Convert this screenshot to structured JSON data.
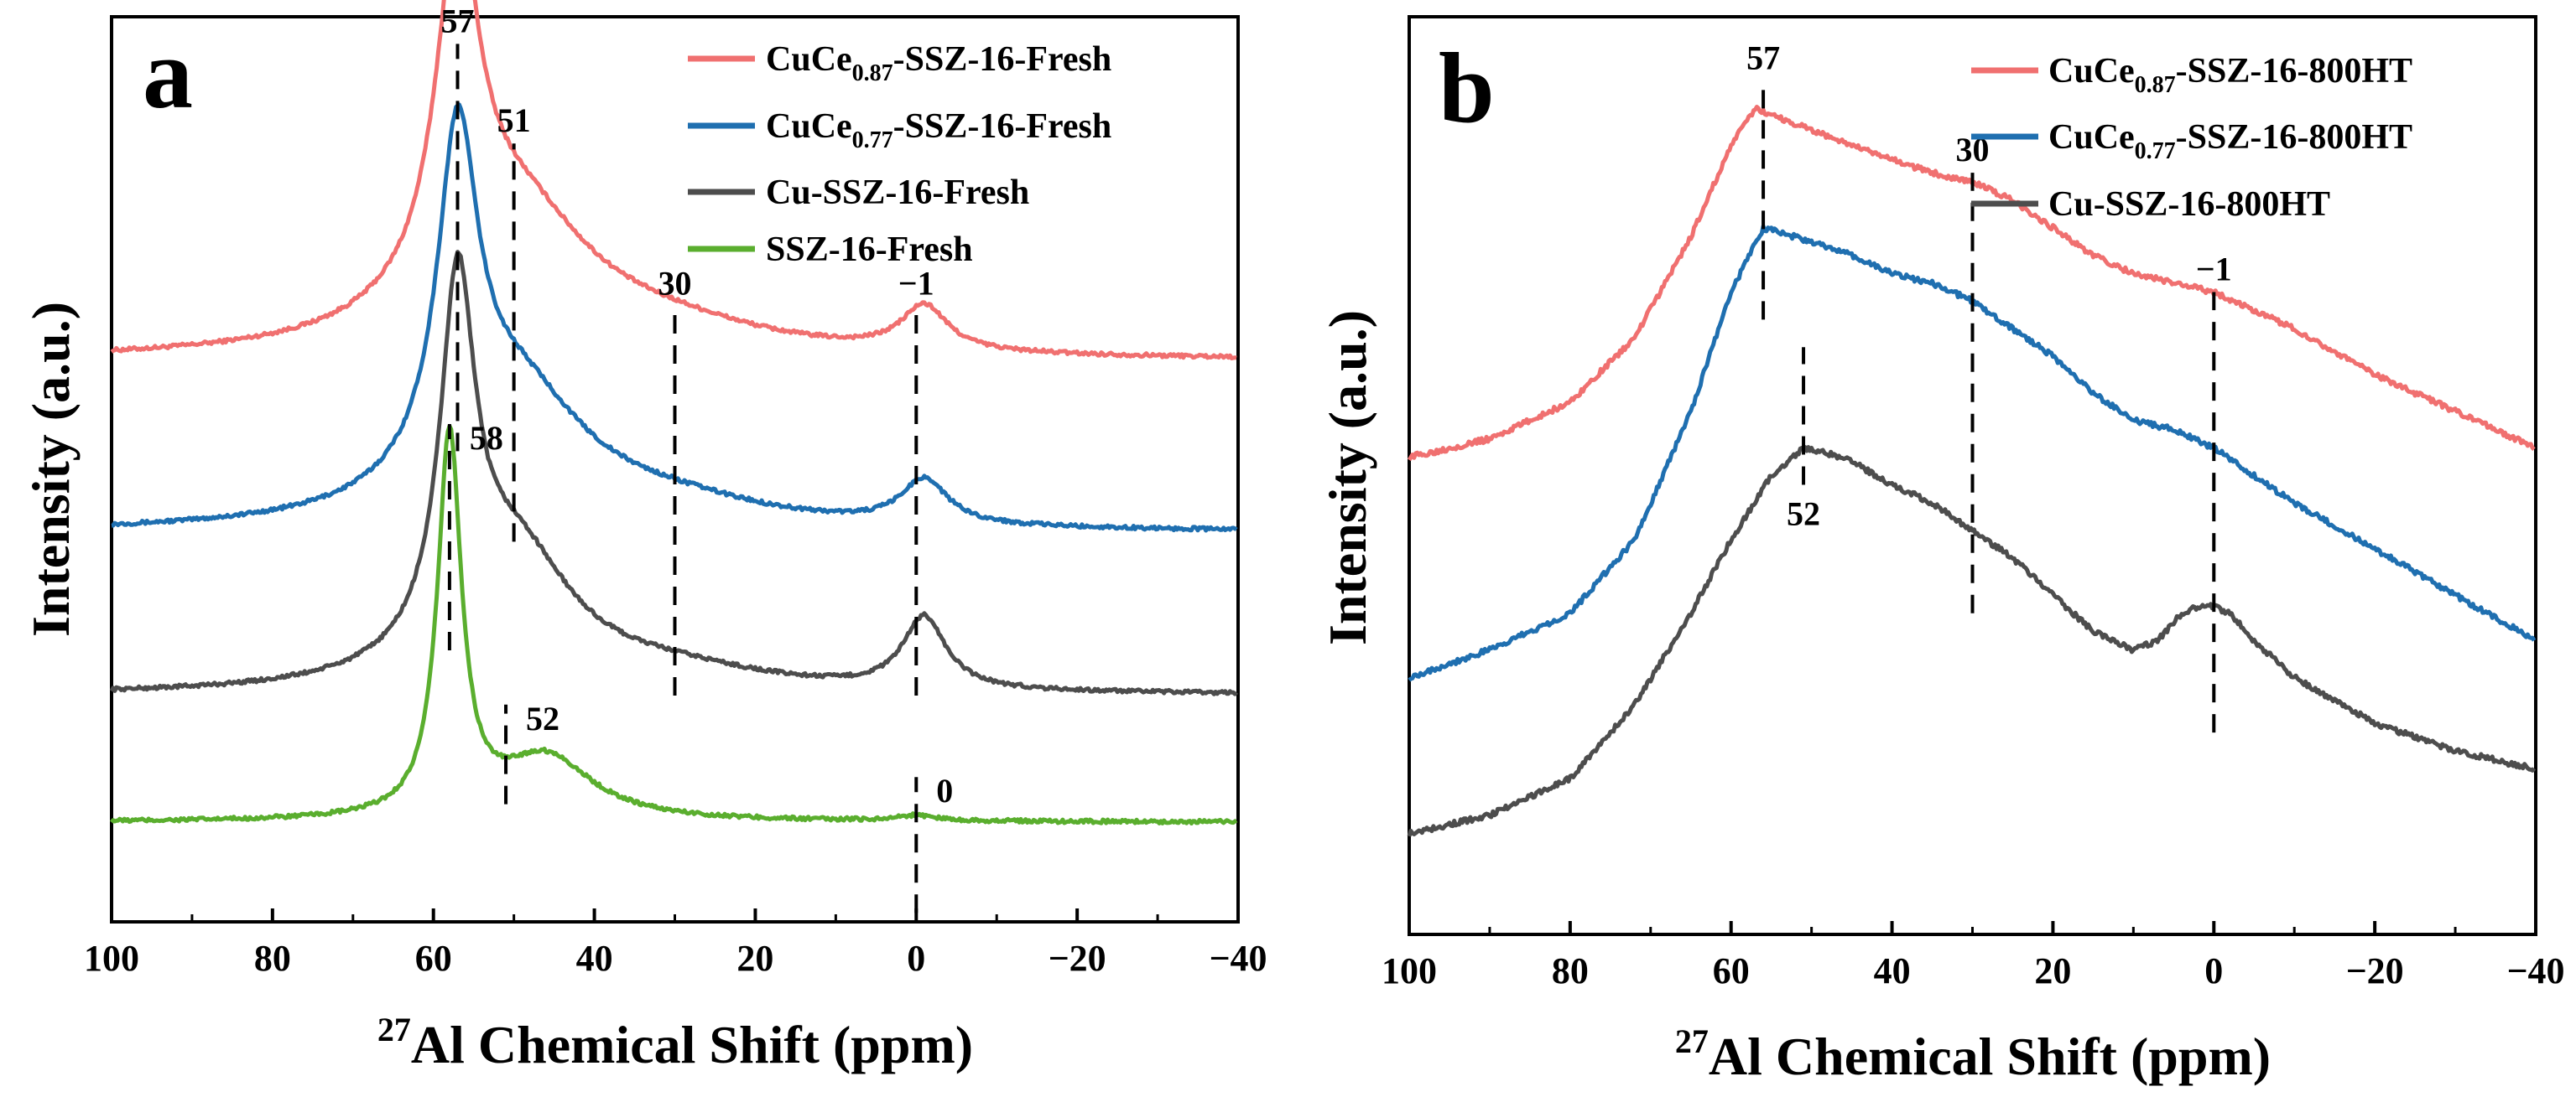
{
  "chart_data": [
    {
      "type": "line",
      "panel": "a",
      "xlabel_sup": "27",
      "xlabel": "Al Chemical Shift (ppm)",
      "ylabel": "Intensity (a.u.)",
      "xlim": [
        100,
        -40
      ],
      "x_ticks": [
        100,
        80,
        60,
        40,
        20,
        0,
        -20,
        -40
      ],
      "x_tick_labels": [
        "100",
        "80",
        "60",
        "40",
        "20",
        "0",
        "−20",
        "−40"
      ],
      "legend_position": "top-right",
      "series": [
        {
          "name_main": "CuCe",
          "name_sub": "0.87",
          "name_rest": "-SSZ-16-Fresh",
          "color": "#f07070",
          "baseline": 0.62,
          "peaks": [
            {
              "x": 57,
              "h": 0.37,
              "w": 3.2
            },
            {
              "x": 50,
              "h": 0.16,
              "w": 12
            },
            {
              "x": 30,
              "h": 0.02,
              "w": 15
            },
            {
              "x": -1,
              "h": 0.05,
              "w": 3.5
            }
          ]
        },
        {
          "name_main": "CuCe",
          "name_sub": "0.77",
          "name_rest": "-SSZ-16-Fresh",
          "color": "#1f6fb0",
          "baseline": 0.43,
          "peaks": [
            {
              "x": 57,
              "h": 0.36,
              "w": 3.0
            },
            {
              "x": 50,
              "h": 0.15,
              "w": 11
            },
            {
              "x": 30,
              "h": 0.02,
              "w": 15
            },
            {
              "x": -1,
              "h": 0.05,
              "w": 3.5
            }
          ]
        },
        {
          "name_main": "Cu-SSZ-16-Fresh",
          "name_sub": "",
          "name_rest": "",
          "color": "#4d4d4d",
          "baseline": 0.25,
          "peaks": [
            {
              "x": 57,
              "h": 0.39,
              "w": 2.6
            },
            {
              "x": 50,
              "h": 0.15,
              "w": 9
            },
            {
              "x": 30,
              "h": 0.02,
              "w": 15
            },
            {
              "x": -1,
              "h": 0.08,
              "w": 3.2
            }
          ]
        },
        {
          "name_main": "SSZ-16-Fresh",
          "name_sub": "",
          "name_rest": "",
          "color": "#5aae2e",
          "baseline": 0.11,
          "peaks": [
            {
              "x": 58,
              "h": 0.42,
              "w": 1.8
            },
            {
              "x": 46,
              "h": 0.07,
              "w": 7
            },
            {
              "x": 0,
              "h": 0.006,
              "w": 3
            }
          ]
        }
      ],
      "annotations": [
        {
          "label": "57",
          "x": 57,
          "y_from": 0.52,
          "y_to": 0.97,
          "label_side": "top"
        },
        {
          "label": "51",
          "x": 50,
          "y_from": 0.42,
          "y_to": 0.86,
          "label_side": "top"
        },
        {
          "label": "30",
          "x": 30,
          "y_from": 0.25,
          "y_to": 0.68,
          "label_side": "top"
        },
        {
          "label": "−1",
          "x": 0,
          "y_from": 0.25,
          "y_to": 0.68,
          "label_side": "top"
        },
        {
          "label": "58",
          "x": 58,
          "y_from": 0.3,
          "y_to": 0.55,
          "label_side": "right"
        },
        {
          "label": "52",
          "x": 51,
          "y_from": 0.13,
          "y_to": 0.24,
          "label_side": "right"
        },
        {
          "label": "0",
          "x": 0,
          "y_from": 0.01,
          "y_to": 0.16,
          "label_side": "right"
        }
      ]
    },
    {
      "type": "line",
      "panel": "b",
      "xlabel_sup": "27",
      "xlabel": "Al Chemical Shift (ppm)",
      "ylabel": "Intensity (a.u.)",
      "xlim": [
        100,
        -40
      ],
      "x_ticks": [
        100,
        80,
        60,
        40,
        20,
        0,
        -20,
        -40
      ],
      "x_tick_labels": [
        "100",
        "80",
        "60",
        "40",
        "20",
        "0",
        "−20",
        "−40"
      ],
      "legend_position": "top-left",
      "series": [
        {
          "name_main": "CuCe",
          "name_sub": "0.87",
          "name_rest": "-SSZ-16-800HT",
          "color": "#f07070",
          "points": [
            [
              100,
              0.52
            ],
            [
              90,
              0.54
            ],
            [
              80,
              0.58
            ],
            [
              72,
              0.65
            ],
            [
              65,
              0.76
            ],
            [
              60,
              0.86
            ],
            [
              57,
              0.9
            ],
            [
              54,
              0.89
            ],
            [
              48,
              0.87
            ],
            [
              42,
              0.85
            ],
            [
              35,
              0.83
            ],
            [
              30,
              0.82
            ],
            [
              25,
              0.8
            ],
            [
              20,
              0.77
            ],
            [
              15,
              0.74
            ],
            [
              10,
              0.72
            ],
            [
              5,
              0.71
            ],
            [
              0,
              0.7
            ],
            [
              -5,
              0.68
            ],
            [
              -10,
              0.66
            ],
            [
              -20,
              0.61
            ],
            [
              -30,
              0.57
            ],
            [
              -40,
              0.53
            ]
          ]
        },
        {
          "name_main": "CuCe",
          "name_sub": "0.77",
          "name_rest": "-SSZ-16-800HT",
          "color": "#1f6fb0",
          "points": [
            [
              100,
              0.28
            ],
            [
              90,
              0.31
            ],
            [
              80,
              0.35
            ],
            [
              72,
              0.43
            ],
            [
              65,
              0.57
            ],
            [
              60,
              0.7
            ],
            [
              56,
              0.77
            ],
            [
              52,
              0.76
            ],
            [
              45,
              0.74
            ],
            [
              40,
              0.72
            ],
            [
              35,
              0.71
            ],
            [
              30,
              0.69
            ],
            [
              25,
              0.66
            ],
            [
              20,
              0.63
            ],
            [
              15,
              0.59
            ],
            [
              10,
              0.56
            ],
            [
              5,
              0.55
            ],
            [
              0,
              0.53
            ],
            [
              -5,
              0.5
            ],
            [
              -10,
              0.47
            ],
            [
              -20,
              0.42
            ],
            [
              -30,
              0.37
            ],
            [
              -40,
              0.32
            ]
          ]
        },
        {
          "name_main": "Cu-SSZ-16-800HT",
          "name_sub": "",
          "name_rest": "",
          "color": "#4d4d4d",
          "points": [
            [
              100,
              0.11
            ],
            [
              90,
              0.13
            ],
            [
              80,
              0.17
            ],
            [
              72,
              0.25
            ],
            [
              65,
              0.35
            ],
            [
              60,
              0.43
            ],
            [
              55,
              0.5
            ],
            [
              51,
              0.53
            ],
            [
              46,
              0.52
            ],
            [
              40,
              0.49
            ],
            [
              35,
              0.47
            ],
            [
              30,
              0.44
            ],
            [
              25,
              0.41
            ],
            [
              20,
              0.37
            ],
            [
              15,
              0.33
            ],
            [
              10,
              0.31
            ],
            [
              7,
              0.32
            ],
            [
              4,
              0.35
            ],
            [
              1,
              0.36
            ],
            [
              -2,
              0.35
            ],
            [
              -5,
              0.32
            ],
            [
              -10,
              0.28
            ],
            [
              -20,
              0.23
            ],
            [
              -30,
              0.2
            ],
            [
              -40,
              0.18
            ]
          ]
        }
      ],
      "annotations": [
        {
          "label": "57",
          "x": 56,
          "y_from": 0.67,
          "y_to": 0.93,
          "label_side": "top"
        },
        {
          "label": "30",
          "x": 30,
          "y_from": 0.35,
          "y_to": 0.83,
          "label_side": "top"
        },
        {
          "label": "−1",
          "x": 0,
          "y_from": 0.22,
          "y_to": 0.7,
          "label_side": "top"
        },
        {
          "label": "52",
          "x": 51,
          "y_from": 0.49,
          "y_to": 0.64,
          "label_side": "bottom"
        }
      ]
    }
  ]
}
